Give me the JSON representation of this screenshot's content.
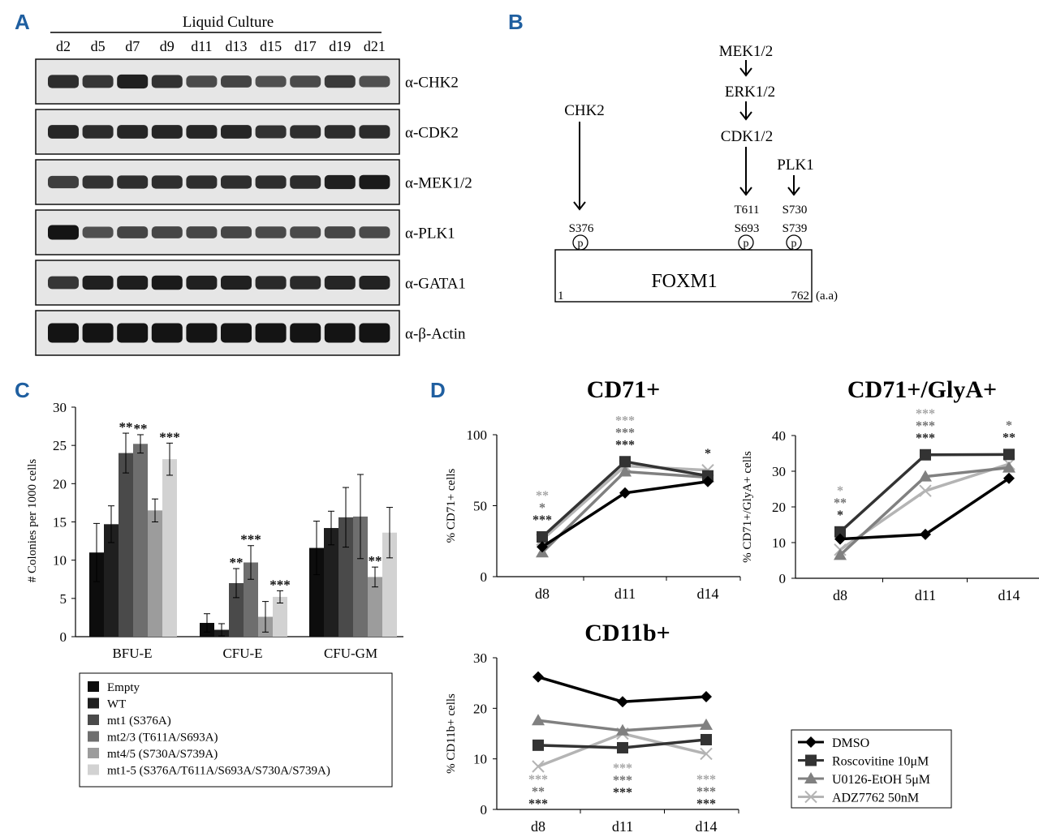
{
  "panel_labels": {
    "a": "A",
    "b": "B",
    "c": "C",
    "d": "D"
  },
  "colors": {
    "panel_label": "#1f5fa0",
    "c_series": [
      "#0d0d0d",
      "#1f1f1f",
      "#4a4a4a",
      "#6e6e6e",
      "#9c9c9c",
      "#d2d2d2"
    ],
    "sig_dark": "#222222",
    "sig_mid": "#707070",
    "sig_light": "#a5a5a5",
    "d_series": [
      "#000000",
      "#333333",
      "#808080",
      "#b4b4b4"
    ]
  },
  "panel_a": {
    "header": "Liquid Culture",
    "days": [
      "d2",
      "d5",
      "d7",
      "d9",
      "d11",
      "d13",
      "d15",
      "d17",
      "d19",
      "d21"
    ],
    "blots": [
      {
        "label": "α-CHK2",
        "intensity": [
          0.78,
          0.72,
          0.9,
          0.75,
          0.55,
          0.6,
          0.5,
          0.55,
          0.68,
          0.5
        ]
      },
      {
        "label": "α-CDK2",
        "intensity": [
          0.85,
          0.8,
          0.85,
          0.85,
          0.85,
          0.85,
          0.75,
          0.78,
          0.8,
          0.8
        ]
      },
      {
        "label": "α-MEK1/2",
        "intensity": [
          0.65,
          0.75,
          0.78,
          0.78,
          0.78,
          0.78,
          0.78,
          0.8,
          0.9,
          0.95
        ]
      },
      {
        "label": "α-PLK1",
        "intensity": [
          1.0,
          0.5,
          0.6,
          0.58,
          0.58,
          0.58,
          0.55,
          0.55,
          0.58,
          0.55
        ]
      },
      {
        "label": "α-GATA1",
        "intensity": [
          0.72,
          0.9,
          0.92,
          0.95,
          0.9,
          0.9,
          0.82,
          0.82,
          0.86,
          0.88
        ]
      },
      {
        "label": "α-β-Actin",
        "intensity": [
          1.0,
          1.0,
          1.0,
          1.0,
          1.0,
          1.0,
          1.0,
          1.0,
          1.0,
          1.0
        ]
      }
    ]
  },
  "panel_b": {
    "kinases": {
      "chk2": "CHK2",
      "mek": "MEK1/2",
      "erk": "ERK1/2",
      "cdk": "CDK1/2",
      "plk": "PLK1"
    },
    "sites": {
      "s376": "S376",
      "t611": "T611",
      "s693": "S693",
      "s730": "S730",
      "s739": "S739"
    },
    "phospho_mark": "p",
    "protein": "FOXM1",
    "start": "1",
    "end": "762",
    "unit": "(a.a)"
  },
  "panel_c": {
    "chart_data": {
      "type": "bar",
      "categories": [
        "BFU-E",
        "CFU-E",
        "CFU-GM"
      ],
      "ylabel": "# Colonies per 1000 cells",
      "ylim": [
        0,
        30
      ],
      "yticks": [
        0,
        5,
        10,
        15,
        20,
        25,
        30
      ],
      "series": [
        {
          "name": "Empty",
          "values": [
            11.0,
            1.8,
            11.6
          ],
          "errors": [
            3.8,
            1.2,
            3.5
          ]
        },
        {
          "name": "WT",
          "values": [
            14.7,
            0.9,
            14.2
          ],
          "errors": [
            2.4,
            0.8,
            2.2
          ]
        },
        {
          "name": "mt1 (S376A)",
          "values": [
            24.0,
            7.0,
            15.6
          ],
          "errors": [
            2.6,
            1.9,
            3.9
          ]
        },
        {
          "name": "mt2/3 (T611A/S693A)",
          "values": [
            25.2,
            9.7,
            15.7
          ],
          "errors": [
            1.2,
            2.2,
            5.5
          ]
        },
        {
          "name": "mt4/5 (S730A/S739A)",
          "values": [
            16.5,
            2.6,
            7.8
          ],
          "errors": [
            1.5,
            2.0,
            1.3
          ]
        },
        {
          "name": "mt1-5 (S376A/T611A/S693A/S730A/S739A)",
          "values": [
            23.2,
            5.2,
            13.6
          ],
          "errors": [
            2.1,
            0.8,
            3.3
          ]
        }
      ],
      "annotations": [
        {
          "category": 0,
          "series": 2,
          "text": "**"
        },
        {
          "category": 0,
          "series": 3,
          "text": "**"
        },
        {
          "category": 0,
          "series": 5,
          "text": "***"
        },
        {
          "category": 1,
          "series": 2,
          "text": "**"
        },
        {
          "category": 1,
          "series": 3,
          "text": "***"
        },
        {
          "category": 1,
          "series": 5,
          "text": "***"
        },
        {
          "category": 2,
          "series": 4,
          "text": "**"
        }
      ]
    }
  },
  "panel_d": {
    "charts": [
      {
        "type": "line",
        "title": "CD71+",
        "ylabel": "% CD71+ cells",
        "x": [
          "d8",
          "d11",
          "d14"
        ],
        "ylim": [
          0,
          100
        ],
        "yticks": [
          0,
          50,
          100
        ],
        "series": [
          {
            "name": "DMSO",
            "values": [
              21,
              59,
              67
            ]
          },
          {
            "name": "Roscovitine 10μM",
            "values": [
              28,
              81,
              71
            ]
          },
          {
            "name": "U0126-EtOH 5μM",
            "values": [
              17,
              74,
              70
            ]
          },
          {
            "name": "ADZ7762 50nM",
            "values": [
              26,
              78,
              75
            ]
          }
        ],
        "sig": [
          [
            "**",
            "*",
            "***"
          ],
          [
            "***",
            "***",
            "***"
          ],
          [
            "*"
          ]
        ]
      },
      {
        "type": "line",
        "title": "CD71+/GlyA+",
        "ylabel": "% CD71+/GlyA+ cells",
        "x": [
          "d8",
          "d11",
          "d14"
        ],
        "ylim": [
          0,
          40
        ],
        "yticks": [
          0,
          10,
          20,
          30,
          40
        ],
        "series": [
          {
            "name": "DMSO",
            "values": [
              11,
              12.3,
              28
            ]
          },
          {
            "name": "Roscovitine 10μM",
            "values": [
              13,
              34.6,
              34.7
            ]
          },
          {
            "name": "U0126-EtOH 5μM",
            "values": [
              6.5,
              28.5,
              31
            ]
          },
          {
            "name": "ADZ7762 50nM",
            "values": [
              8,
              24.5,
              32
            ]
          }
        ],
        "sig": [
          [
            "*",
            "**",
            "*"
          ],
          [
            "***",
            "***",
            "***"
          ],
          [
            "*",
            "**"
          ]
        ]
      },
      {
        "type": "line",
        "title": "CD11b+",
        "ylabel": "% CD11b+ cells",
        "x": [
          "d8",
          "d11",
          "d14"
        ],
        "ylim": [
          0,
          30
        ],
        "yticks": [
          0,
          10,
          20,
          30
        ],
        "series": [
          {
            "name": "DMSO",
            "values": [
              26.2,
              21.3,
              22.3
            ]
          },
          {
            "name": "Roscovitine 10μM",
            "values": [
              12.7,
              12.2,
              13.8
            ]
          },
          {
            "name": "U0126-EtOH 5μM",
            "values": [
              17.6,
              15.6,
              16.7
            ]
          },
          {
            "name": "ADZ7762 50nM",
            "values": [
              8.5,
              15.0,
              11.0
            ]
          }
        ],
        "sig": [
          [
            "***",
            "**",
            "***"
          ],
          [
            "***",
            "***",
            "***"
          ],
          [
            "***",
            "***",
            "***"
          ]
        ]
      }
    ],
    "legend": [
      "DMSO",
      "Roscovitine 10μM",
      "U0126-EtOH 5μM",
      "ADZ7762 50nM"
    ]
  }
}
